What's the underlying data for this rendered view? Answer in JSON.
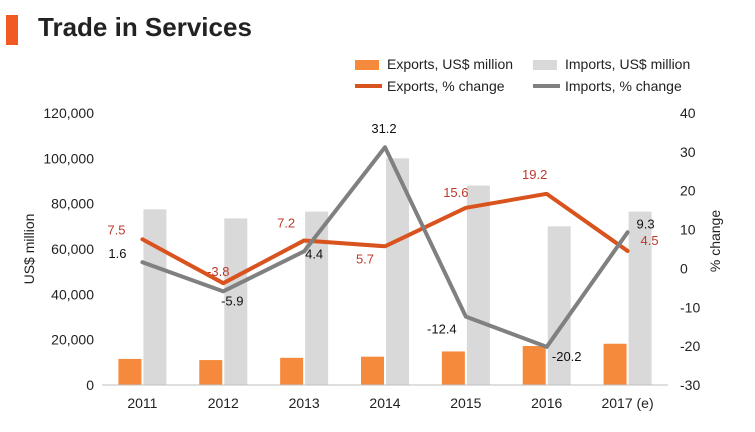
{
  "page_title": "Trade in Services",
  "chart_data": {
    "type": "bar",
    "title": "Trade in Services",
    "categories": [
      "2011",
      "2012",
      "2013",
      "2014",
      "2015",
      "2016",
      "2017 (e)"
    ],
    "series": [
      {
        "name": "Exports, US$ million",
        "kind": "bar",
        "axis": "left",
        "color": "#f58a3c",
        "values": [
          11500,
          11000,
          12000,
          12500,
          14800,
          17200,
          18200
        ]
      },
      {
        "name": "Imports, US$ million",
        "kind": "bar",
        "axis": "left",
        "color": "#d9d9d9",
        "values": [
          77500,
          73500,
          76500,
          100000,
          88000,
          70000,
          76500
        ]
      },
      {
        "name": "Exports, % change",
        "kind": "line",
        "axis": "right",
        "color": "#d9531e",
        "values": [
          7.5,
          -3.8,
          7.2,
          5.7,
          15.6,
          19.2,
          4.5
        ],
        "labels": [
          "7.5",
          "-3.8",
          "7.2",
          "5.7",
          "15.6",
          "19.2",
          "4.5"
        ],
        "label_color": "#c0392b"
      },
      {
        "name": "Imports, % change",
        "kind": "line",
        "axis": "right",
        "color": "#808080",
        "values": [
          1.6,
          -5.9,
          4.4,
          31.2,
          -12.4,
          -20.2,
          9.3
        ],
        "labels": [
          "1.6",
          "-5.9",
          "4.4",
          "31.2",
          "-12.4",
          "-20.2",
          "9.3"
        ],
        "label_color": "#111111"
      }
    ],
    "ylabel": "US$ million",
    "y2label": "% change",
    "ylim": [
      0,
      120000
    ],
    "y2lim": [
      -30,
      40
    ],
    "yticks": [
      "0",
      "20,000",
      "40,000",
      "60,000",
      "80,000",
      "100,000",
      "120,000"
    ],
    "y2ticks": [
      "-30",
      "-20",
      "-10",
      "0",
      "10",
      "20",
      "30",
      "40"
    ],
    "legend_position": "top-right",
    "grid": false
  }
}
